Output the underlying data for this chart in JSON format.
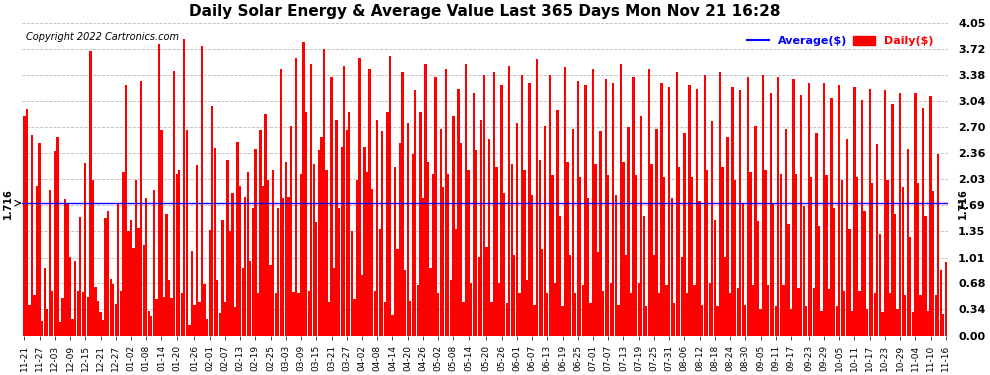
{
  "title": "Daily Solar Energy & Average Value Last 365 Days Mon Nov 21 16:28",
  "copyright": "Copyright 2022 Cartronics.com",
  "legend_average": "Average($)",
  "legend_daily": "Daily($)",
  "average_value": 1.716,
  "bar_color": "#ff0000",
  "average_line_color": "#0000ff",
  "background_color": "#ffffff",
  "grid_color": "#bbbbbb",
  "yticks": [
    0.0,
    0.34,
    0.68,
    1.01,
    1.35,
    1.69,
    2.03,
    2.36,
    2.7,
    3.04,
    3.38,
    3.72,
    4.05
  ],
  "ylim": [
    0.0,
    4.05
  ],
  "x_labels": [
    "11-21",
    "11-27",
    "12-03",
    "12-09",
    "12-15",
    "12-21",
    "12-27",
    "01-02",
    "01-08",
    "01-14",
    "01-20",
    "01-26",
    "02-01",
    "02-07",
    "02-13",
    "02-19",
    "02-25",
    "03-03",
    "03-09",
    "03-15",
    "03-21",
    "03-27",
    "04-02",
    "04-08",
    "04-14",
    "04-20",
    "04-26",
    "05-02",
    "05-08",
    "05-14",
    "05-20",
    "05-26",
    "06-01",
    "06-07",
    "06-13",
    "06-19",
    "06-25",
    "07-01",
    "07-07",
    "07-13",
    "07-19",
    "07-25",
    "07-31",
    "08-06",
    "08-12",
    "08-18",
    "08-24",
    "08-30",
    "09-05",
    "09-11",
    "09-17",
    "09-23",
    "09-29",
    "10-05",
    "10-11",
    "10-17",
    "10-23",
    "10-29",
    "11-04",
    "11-10",
    "11-16"
  ],
  "values": [
    2.85,
    2.94,
    0.39,
    2.6,
    0.52,
    1.94,
    2.49,
    0.19,
    0.88,
    0.35,
    1.89,
    0.58,
    2.39,
    2.58,
    0.18,
    0.49,
    1.77,
    1.72,
    1.02,
    0.22,
    0.96,
    0.58,
    1.54,
    0.56,
    2.24,
    0.5,
    3.69,
    2.01,
    0.63,
    0.45,
    0.3,
    0.2,
    1.52,
    1.61,
    0.73,
    0.67,
    0.41,
    1.7,
    0.58,
    2.12,
    3.25,
    1.35,
    1.5,
    1.14,
    2.01,
    1.39,
    3.3,
    1.18,
    1.78,
    0.32,
    0.25,
    1.89,
    0.47,
    3.78,
    2.67,
    0.5,
    1.58,
    0.72,
    0.49,
    3.43,
    2.09,
    2.15,
    0.55,
    3.85,
    2.67,
    0.14,
    1.09,
    0.39,
    2.21,
    0.43,
    3.75,
    0.67,
    0.21,
    1.37,
    2.98,
    2.43,
    0.72,
    0.29,
    1.5,
    0.43,
    2.28,
    1.35,
    1.85,
    0.37,
    2.51,
    1.94,
    0.88,
    1.79,
    2.12,
    0.96,
    1.65,
    2.42,
    0.55,
    2.67,
    1.94,
    2.87,
    2.01,
    0.91,
    2.15,
    0.55,
    1.65,
    3.45,
    1.78,
    2.25,
    1.8,
    2.72,
    0.56,
    3.6,
    0.55,
    2.1,
    3.8,
    2.9,
    0.58,
    3.52,
    2.23,
    1.47,
    2.4,
    2.58,
    3.72,
    2.15,
    0.43,
    3.35,
    0.88,
    2.79,
    1.65,
    2.45,
    3.5,
    2.67,
    2.9,
    1.35,
    0.47,
    2.01,
    3.6,
    0.78,
    2.45,
    2.12,
    3.45,
    1.9,
    0.58,
    2.8,
    1.38,
    2.65,
    0.43,
    2.9,
    3.62,
    0.27,
    2.18,
    1.12,
    2.5,
    3.42,
    0.85,
    2.75,
    0.45,
    2.35,
    3.18,
    0.65,
    2.9,
    1.78,
    3.52,
    2.25,
    0.88,
    2.1,
    3.35,
    0.55,
    2.68,
    1.92,
    3.45,
    2.1,
    0.72,
    2.85,
    1.38,
    3.2,
    2.5,
    0.43,
    3.52,
    2.15,
    0.68,
    3.15,
    2.4,
    1.02,
    2.8,
    3.38,
    1.15,
    2.55,
    0.43,
    3.42,
    2.18,
    0.68,
    3.25,
    1.85,
    0.42,
    3.5,
    2.22,
    1.05,
    2.75,
    0.55,
    3.38,
    2.15,
    0.72,
    3.28,
    1.82,
    0.4,
    3.58,
    2.28,
    1.12,
    2.72,
    0.55,
    3.38,
    2.08,
    0.68,
    2.92,
    1.55,
    0.38,
    3.48,
    2.25,
    1.05,
    2.68,
    0.55,
    3.3,
    2.05,
    0.65,
    3.25,
    1.78,
    0.42,
    3.45,
    2.22,
    1.08,
    2.65,
    0.58,
    3.32,
    2.08,
    0.68,
    3.28,
    1.82,
    0.4,
    3.52,
    2.25,
    1.05,
    2.7,
    0.55,
    3.35,
    2.08,
    0.68,
    2.85,
    1.55,
    0.38,
    3.45,
    2.22,
    1.05,
    2.68,
    0.55,
    3.28,
    2.05,
    0.65,
    3.22,
    1.78,
    0.42,
    3.42,
    2.18,
    1.02,
    2.62,
    0.55,
    3.25,
    2.05,
    0.65,
    3.2,
    1.75,
    0.4,
    3.38,
    2.15,
    0.68,
    2.78,
    1.5,
    0.38,
    3.42,
    2.18,
    1.02,
    2.58,
    0.55,
    3.22,
    2.02,
    0.62,
    3.18,
    1.72,
    0.4,
    3.35,
    2.12,
    0.65,
    2.72,
    1.48,
    0.35,
    3.38,
    2.15,
    0.65,
    3.15,
    1.72,
    0.38,
    3.35,
    2.1,
    0.65,
    2.68,
    1.45,
    0.35,
    3.32,
    2.1,
    0.62,
    3.12,
    1.68,
    0.38,
    3.28,
    2.05,
    0.62,
    2.62,
    1.42,
    0.32,
    3.28,
    2.08,
    0.6,
    3.08,
    1.65,
    0.38,
    3.25,
    2.02,
    0.58,
    2.55,
    1.38,
    0.32,
    3.22,
    2.05,
    0.58,
    3.05,
    1.62,
    0.35,
    3.2,
    1.98,
    0.55,
    2.48,
    1.32,
    0.3,
    3.18,
    2.02,
    0.55,
    3.0,
    1.58,
    0.35,
    3.15,
    1.92,
    0.52,
    2.42,
    1.28,
    0.3,
    3.15,
    1.98,
    0.52,
    2.95,
    1.55,
    0.32,
    3.1,
    1.88,
    0.52,
    2.35,
    0.85,
    0.28,
    0.95
  ]
}
